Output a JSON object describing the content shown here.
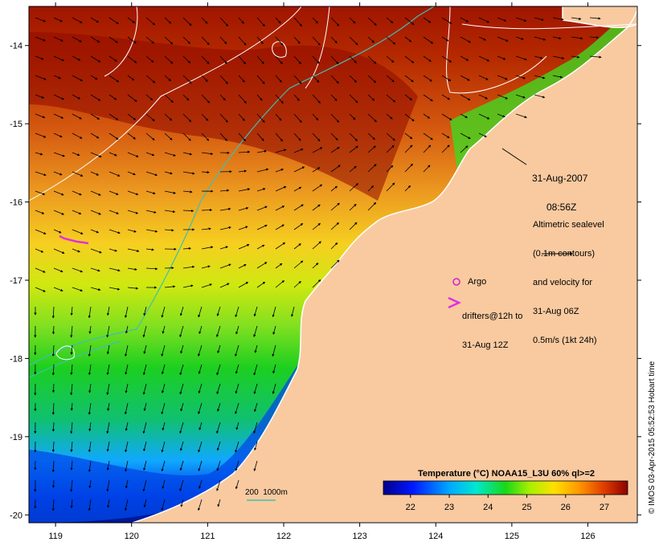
{
  "map": {
    "lon_ticks": [
      "119",
      "120",
      "121",
      "122",
      "123",
      "124",
      "125",
      "126"
    ],
    "lat_ticks": [
      "-14",
      "-15",
      "-16",
      "-17",
      "-18",
      "-19",
      "-20"
    ],
    "lon_range": [
      118.65,
      126.65
    ],
    "lat_range": [
      -20.1,
      -13.5
    ],
    "colors": {
      "land": "#f9caa0",
      "coastline": "#ffffff",
      "contour": "#ffffff",
      "bathymetry_200_1000m": "#3fbfb0",
      "arrows": "#000000",
      "argo": "#d020d0",
      "drifters": "#e030e0"
    }
  },
  "date_label": {
    "line1": "31-Aug-2007",
    "line2": "08:56Z"
  },
  "legend": {
    "altimetry": [
      "Altimetric sealevel",
      "(0.1m contours)",
      "and velocity for",
      "31-Aug 06Z",
      "0.5m/s (1kt 24h)"
    ],
    "argo_label": "Argo",
    "drifters_label": [
      "drifters@12h to",
      "31-Aug 12Z"
    ],
    "bathymetry_label": "200  1000m"
  },
  "colorbar": {
    "title": "Temperature (°C) NOAA15_L3U 60% ql>=2",
    "ticks": [
      "22",
      "23",
      "24",
      "25",
      "26",
      "27"
    ],
    "min": 21.3,
    "max": 27.6
  },
  "credit": "© IMOS 03-Apr-2015 05:52:53 Hobart time"
}
